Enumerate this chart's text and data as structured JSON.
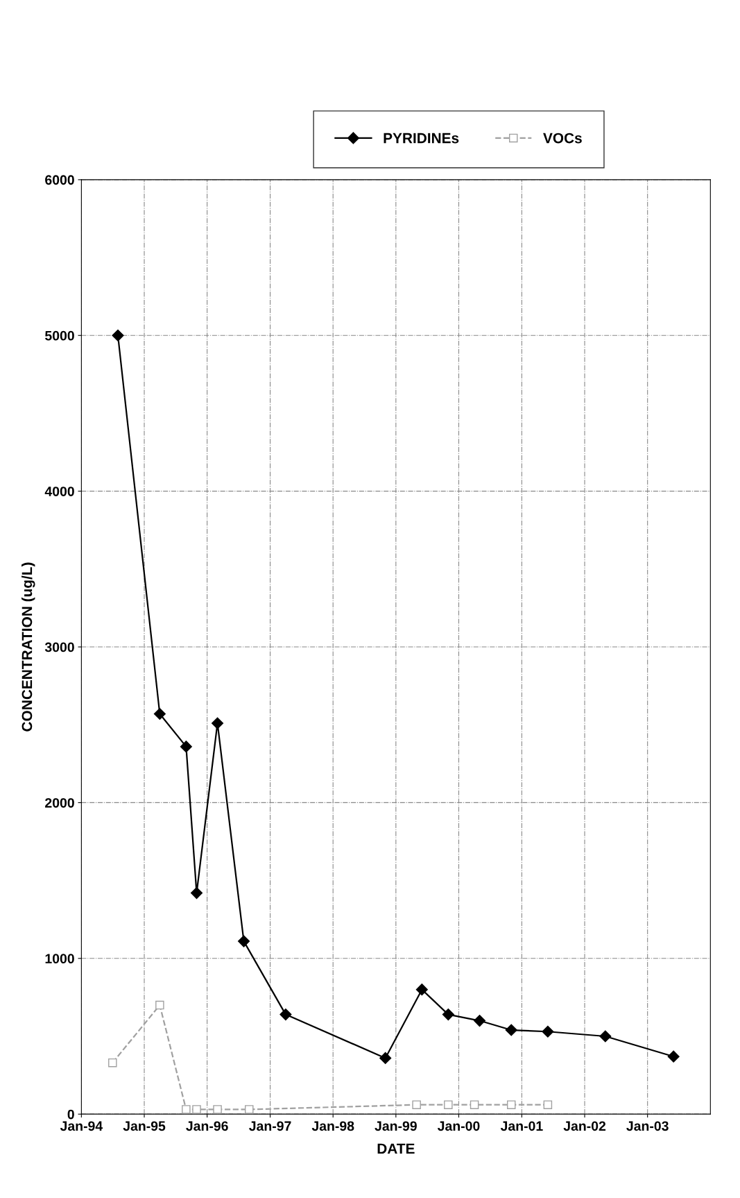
{
  "chart_data": {
    "type": "line",
    "xlabel": "DATE",
    "ylabel": "CONCENTRATION (ug/L)",
    "series": [
      {
        "name": "PYRIDINEs",
        "color": "#000000",
        "marker": "diamond",
        "line_style": "solid",
        "x": [
          "1994-08",
          "1995-04",
          "1995-09",
          "1995-11",
          "1996-03",
          "1996-08",
          "1997-04",
          "1998-11",
          "1999-06",
          "1999-11",
          "2000-05",
          "2000-11",
          "2001-06",
          "2002-05",
          "2003-06"
        ],
        "values": [
          5000,
          2570,
          2360,
          1420,
          2510,
          1110,
          640,
          360,
          800,
          640,
          600,
          540,
          530,
          500,
          370
        ]
      },
      {
        "name": "VOCs",
        "color": "#a0a0a0",
        "marker": "square",
        "line_style": "dashed",
        "x": [
          "1994-07",
          "1995-04",
          "1995-09",
          "1995-11",
          "1996-03",
          "1996-09",
          "1999-05",
          "1999-11",
          "2000-04",
          "2000-11",
          "2001-06"
        ],
        "values": [
          330,
          700,
          30,
          30,
          30,
          30,
          60,
          60,
          60,
          60,
          60
        ]
      }
    ],
    "xlim": [
      "1994-01",
      "2004-01"
    ],
    "xticks": [
      {
        "value": "1994-01",
        "label": "Jan-94"
      },
      {
        "value": "1995-01",
        "label": "Jan-95"
      },
      {
        "value": "1996-01",
        "label": "Jan-96"
      },
      {
        "value": "1997-01",
        "label": "Jan-97"
      },
      {
        "value": "1998-01",
        "label": "Jan-98"
      },
      {
        "value": "1999-01",
        "label": "Jan-99"
      },
      {
        "value": "2000-01",
        "label": "Jan-00"
      },
      {
        "value": "2001-01",
        "label": "Jan-01"
      },
      {
        "value": "2002-01",
        "label": "Jan-02"
      },
      {
        "value": "2003-01",
        "label": "Jan-03"
      }
    ],
    "ylim": [
      0,
      6000
    ],
    "yticks": [
      0,
      1000,
      2000,
      3000,
      4000,
      5000,
      6000
    ],
    "grid": true,
    "legend": "top"
  }
}
